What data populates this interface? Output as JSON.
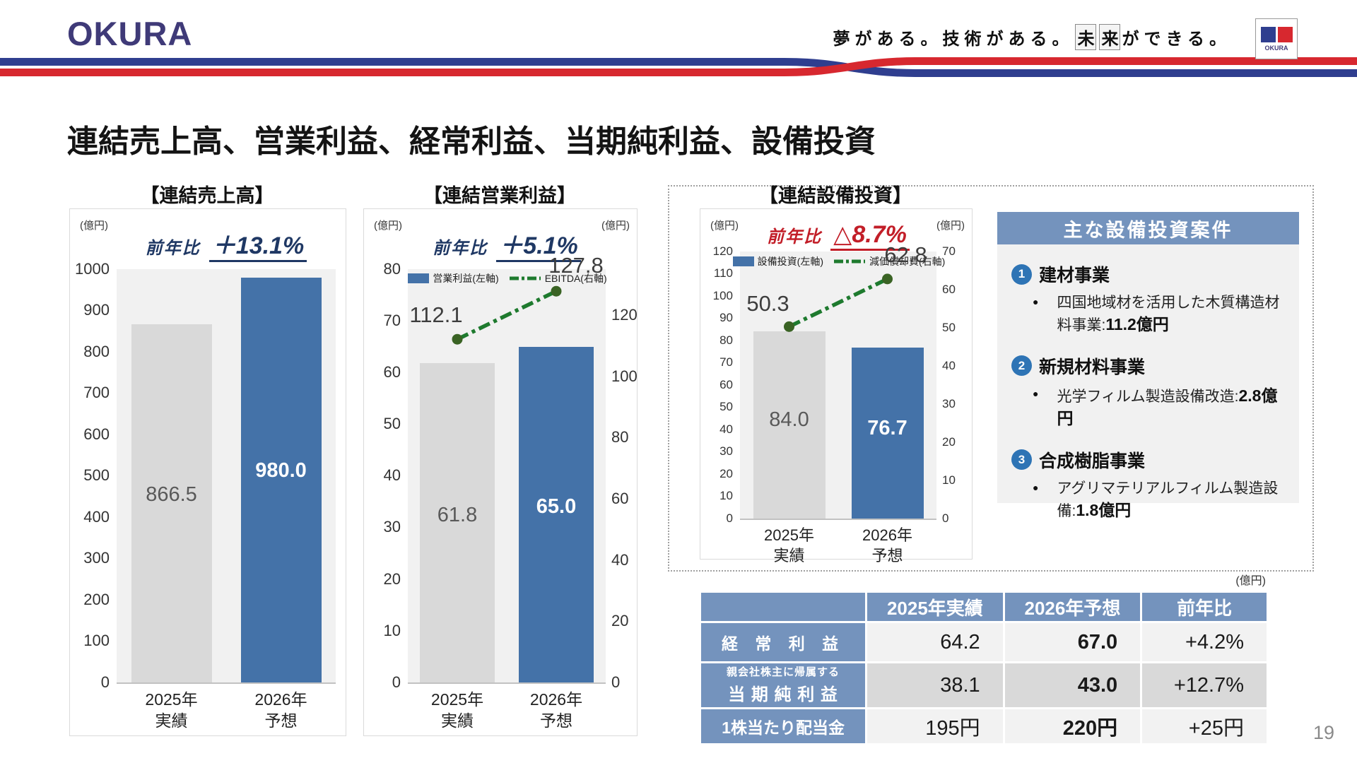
{
  "colors": {
    "bar_blue": "#4472A8",
    "bar_gray": "#D9D9D9",
    "line_green": "#1E7A2E",
    "marker_green": "#3A6324",
    "accent_blue": "#7493BD",
    "navy": "#1F3864",
    "red": "#C21E28",
    "ribbon_blue": "#2F3E8F",
    "ribbon_red": "#D7282F",
    "logo_navy": "#3F3A78"
  },
  "header": {
    "logo_text": "OKURA",
    "tagline": {
      "part1": "夢がある。技術がある。",
      "boxed": "未来",
      "part2": "ができる。"
    },
    "badge_label": "OKURA"
  },
  "page": {
    "title": "連結売上高、営業利益、経常利益、当期純利益、設備投資",
    "number": "19"
  },
  "chart_data": [
    {
      "id": "sales",
      "type": "bar",
      "title": "【連結売上高】",
      "unit_left": "(億円)",
      "yoy": {
        "label": "前年比",
        "value": "＋13.1%",
        "color": "#1F3864"
      },
      "categories": [
        "2025年|実績",
        "2026年|予想"
      ],
      "series": [
        {
          "name": "売上高",
          "type": "bar",
          "axis": "left",
          "values": [
            866.5,
            980.0
          ],
          "labels": [
            "866.5",
            "980.0"
          ],
          "colors": [
            "#D9D9D9",
            "#4472A8"
          ],
          "label_colors": [
            "#595959",
            "#FFFFFF"
          ]
        }
      ],
      "left_axis": {
        "min": 0,
        "max": 1000,
        "step": 100
      },
      "grid": false,
      "legend_position": "none"
    },
    {
      "id": "op",
      "type": "bar+line",
      "title": "【連結営業利益】",
      "unit_left": "(億円)",
      "unit_right": "(億円)",
      "yoy": {
        "label": "前年比",
        "value": "＋5.1%",
        "color": "#1F3864"
      },
      "categories": [
        "2025年|実績",
        "2026年|予想"
      ],
      "legend": [
        {
          "swatch": "bar",
          "label": "営業利益(左軸)"
        },
        {
          "swatch": "line",
          "label": "EBITDA(右軸)"
        }
      ],
      "series": [
        {
          "name": "営業利益",
          "type": "bar",
          "axis": "left",
          "values": [
            61.8,
            65.0
          ],
          "labels": [
            "61.8",
            "65.0"
          ],
          "colors": [
            "#D9D9D9",
            "#4472A8"
          ],
          "label_colors": [
            "#595959",
            "#FFFFFF"
          ]
        },
        {
          "name": "EBITDA",
          "type": "line",
          "axis": "right",
          "values": [
            112.1,
            127.8
          ],
          "labels": [
            "112.1",
            "127.8"
          ],
          "color": "#1E7A2E"
        }
      ],
      "left_axis": {
        "min": 0,
        "max": 80,
        "step": 10
      },
      "right_axis": {
        "min": 0,
        "max": 135,
        "ticks": [
          120,
          100,
          80,
          60,
          40,
          20,
          0
        ]
      },
      "grid": false,
      "legend_position": "top-inside"
    },
    {
      "id": "capex",
      "type": "bar+line",
      "title": "【連結設備投資】",
      "unit_left": "(億円)",
      "unit_right": "(億円)",
      "yoy": {
        "label": "前年比",
        "value": "△8.7%",
        "color": "#C21E28"
      },
      "categories": [
        "2025年|実績",
        "2026年|予想"
      ],
      "legend": [
        {
          "swatch": "bar",
          "label": "設備投資(左軸)"
        },
        {
          "swatch": "line",
          "label": "減価償却費(右軸)"
        }
      ],
      "series": [
        {
          "name": "設備投資",
          "type": "bar",
          "axis": "left",
          "values": [
            84.0,
            76.7
          ],
          "labels": [
            "84.0",
            "76.7"
          ],
          "colors": [
            "#D9D9D9",
            "#4472A8"
          ],
          "label_colors": [
            "#595959",
            "#FFFFFF"
          ]
        },
        {
          "name": "減価償却費",
          "type": "line",
          "axis": "right",
          "values": [
            50.3,
            62.8
          ],
          "labels": [
            "50.3",
            "62.8"
          ],
          "color": "#1E7A2E"
        }
      ],
      "left_axis": {
        "min": 0,
        "max": 120,
        "step": 10
      },
      "right_axis": {
        "min": 0,
        "max": 70,
        "ticks": [
          70,
          60,
          50,
          40,
          30,
          20,
          10,
          0
        ]
      },
      "grid": false,
      "legend_position": "top-inside"
    }
  ],
  "investment_panel": {
    "title": "主な設備投資案件",
    "items": [
      {
        "num": "1",
        "name": "建材事業",
        "detail_text": "四国地域材を活用した木質構造材料事業:",
        "detail_value": "11.2億円"
      },
      {
        "num": "2",
        "name": "新規材料事業",
        "detail_text": "光学フィルム製造設備改造:",
        "detail_value": "2.8億円"
      },
      {
        "num": "3",
        "name": "合成樹脂事業",
        "detail_text": "アグリマテリアルフィルム製造設備:",
        "detail_value": "1.8億円"
      }
    ]
  },
  "table": {
    "unit": "(億円)",
    "columns": [
      "",
      "2025年実績",
      "2026年予想",
      "前年比"
    ],
    "rows": [
      {
        "label": "経 常 利 益",
        "sub": "",
        "values": [
          "64.2",
          "67.0",
          "+4.2%"
        ],
        "shade": "light"
      },
      {
        "label": "当 期 純 利 益",
        "sub": "親会社株主に帰属する",
        "values": [
          "38.1",
          "43.0",
          "+12.7%"
        ],
        "shade": "mid"
      },
      {
        "label": "1株当たり配当金",
        "sub": "",
        "values": [
          "195円",
          "220円",
          "+25円"
        ],
        "shade": "light"
      }
    ]
  }
}
